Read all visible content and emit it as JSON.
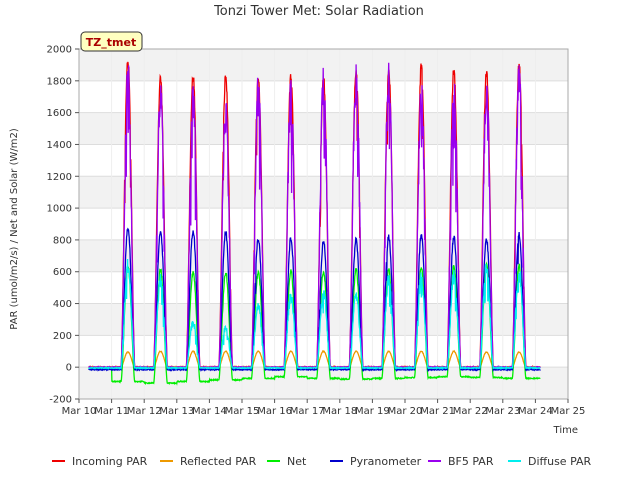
{
  "chart_data": {
    "type": "line",
    "title": "Tonzi Tower Met: Solar Radiation",
    "xlabel": "Time",
    "ylabel": "PAR (umol/m2/s) / Net and Solar (W/m2)",
    "site_label": "TZ_tmet",
    "xlim": [
      10,
      25
    ],
    "ylim": [
      -200,
      2000
    ],
    "x_ticks": [
      {
        "value": 10,
        "label": "Mar 10"
      },
      {
        "value": 11,
        "label": "Mar 11"
      },
      {
        "value": 12,
        "label": "Mar 12"
      },
      {
        "value": 13,
        "label": "Mar 13"
      },
      {
        "value": 14,
        "label": "Mar 14"
      },
      {
        "value": 15,
        "label": "Mar 15"
      },
      {
        "value": 16,
        "label": "Mar 16"
      },
      {
        "value": 17,
        "label": "Mar 17"
      },
      {
        "value": 18,
        "label": "Mar 18"
      },
      {
        "value": 19,
        "label": "Mar 19"
      },
      {
        "value": 20,
        "label": "Mar 20"
      },
      {
        "value": 21,
        "label": "Mar 21"
      },
      {
        "value": 22,
        "label": "Mar 22"
      },
      {
        "value": 23,
        "label": "Mar 23"
      },
      {
        "value": 24,
        "label": "Mar 24"
      },
      {
        "value": 25,
        "label": "Mar 25"
      }
    ],
    "y_ticks": [
      -200,
      0,
      200,
      400,
      600,
      800,
      1000,
      1200,
      1400,
      1600,
      1800,
      2000
    ],
    "grid": true,
    "data_start_day": 10.3,
    "data_end_day": 24.15,
    "series": [
      {
        "name": "Incoming PAR",
        "color": "#ee0000",
        "night_value": 0,
        "peaks": [
          1930,
          1815,
          1830,
          1825,
          1830,
          1825,
          1815,
          1865,
          1875,
          1890,
          1880,
          1860,
          1900,
          1890
        ]
      },
      {
        "name": "Reflected PAR",
        "color": "#ee9900",
        "night_value": 0,
        "peaks": [
          95,
          100,
          100,
          100,
          100,
          100,
          100,
          100,
          100,
          100,
          100,
          95,
          95,
          95
        ]
      },
      {
        "name": "Net",
        "color": "#00ee00",
        "night_value": -70,
        "night_values": [
          -10,
          -90,
          -100,
          -90,
          -80,
          -70,
          -60,
          -70,
          -75,
          -70,
          -65,
          -60,
          -65,
          -70,
          -70
        ],
        "peaks": [
          640,
          610,
          600,
          590,
          600,
          600,
          600,
          610,
          610,
          620,
          630,
          640,
          640,
          650
        ]
      },
      {
        "name": "Pyranometer",
        "color": "#0000cc",
        "night_value": -15,
        "peaks": [
          870,
          850,
          860,
          845,
          805,
          810,
          790,
          800,
          820,
          825,
          820,
          800,
          835,
          840
        ]
      },
      {
        "name": "BF5 PAR",
        "color": "#9900ee",
        "night_value": 0,
        "peaks": [
          1780,
          1680,
          1640,
          1600,
          1720,
          1670,
          1790,
          1800,
          1790,
          1660,
          1730,
          1680,
          1800,
          1670
        ]
      },
      {
        "name": "Diffuse PAR",
        "color": "#00eeee",
        "night_value": -5,
        "peaks": [
          630,
          540,
          280,
          250,
          380,
          450,
          470,
          440,
          540,
          560,
          560,
          620,
          600,
          390
        ]
      }
    ]
  }
}
